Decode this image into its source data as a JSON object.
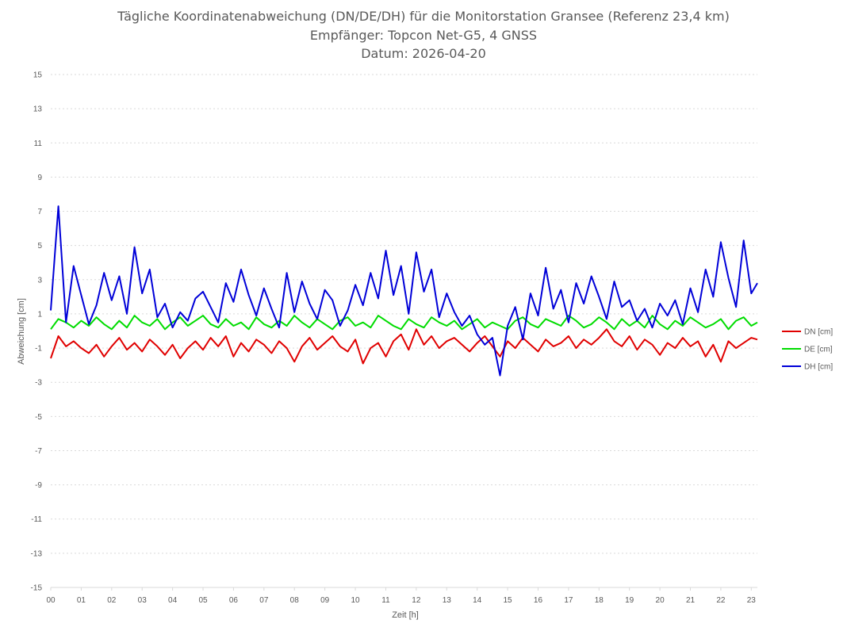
{
  "chart_data": {
    "type": "line",
    "title": "Tägliche Koordinatenabweichung (DN/DE/DH) für die Monitorstation Gransee (Referenz 23,4 km)",
    "subtitle": "Empfänger: Topcon Net-G5, 4 GNSS",
    "date_line": "Datum: 2026-04-20",
    "xlabel": "Zeit [h]",
    "ylabel": "Abweichung [cm]",
    "xlim": [
      0,
      23.2
    ],
    "ylim": [
      -15,
      15
    ],
    "x_ticks": [
      "00",
      "01",
      "02",
      "03",
      "04",
      "05",
      "06",
      "07",
      "08",
      "09",
      "10",
      "11",
      "12",
      "13",
      "14",
      "15",
      "16",
      "17",
      "18",
      "19",
      "20",
      "21",
      "22",
      "23"
    ],
    "y_ticks": [
      15,
      13,
      11,
      9,
      7,
      5,
      3,
      1,
      -1,
      -3,
      -5,
      -7,
      -9,
      -11,
      -13,
      -15
    ],
    "grid": "horizontal-dotted",
    "legend_position": "right",
    "x": [
      0.0,
      0.25,
      0.5,
      0.75,
      1.0,
      1.25,
      1.5,
      1.75,
      2.0,
      2.25,
      2.5,
      2.75,
      3.0,
      3.25,
      3.5,
      3.75,
      4.0,
      4.25,
      4.5,
      4.75,
      5.0,
      5.25,
      5.5,
      5.75,
      6.0,
      6.25,
      6.5,
      6.75,
      7.0,
      7.25,
      7.5,
      7.75,
      8.0,
      8.25,
      8.5,
      8.75,
      9.0,
      9.25,
      9.5,
      9.75,
      10.0,
      10.25,
      10.5,
      10.75,
      11.0,
      11.25,
      11.5,
      11.75,
      12.0,
      12.25,
      12.5,
      12.75,
      13.0,
      13.25,
      13.5,
      13.75,
      14.0,
      14.25,
      14.5,
      14.75,
      15.0,
      15.25,
      15.5,
      15.75,
      16.0,
      16.25,
      16.5,
      16.75,
      17.0,
      17.25,
      17.5,
      17.75,
      18.0,
      18.25,
      18.5,
      18.75,
      19.0,
      19.25,
      19.5,
      19.75,
      20.0,
      20.25,
      20.5,
      20.75,
      21.0,
      21.25,
      21.5,
      21.75,
      22.0,
      22.25,
      22.5,
      22.75,
      23.0,
      23.2
    ],
    "series": [
      {
        "name": "DN [cm]",
        "color": "#e00000",
        "values": [
          -1.6,
          -0.3,
          -0.9,
          -0.6,
          -1.0,
          -1.3,
          -0.8,
          -1.5,
          -0.9,
          -0.4,
          -1.1,
          -0.7,
          -1.2,
          -0.5,
          -0.9,
          -1.4,
          -0.8,
          -1.6,
          -1.0,
          -0.6,
          -1.1,
          -0.4,
          -0.9,
          -0.3,
          -1.5,
          -0.7,
          -1.2,
          -0.5,
          -0.8,
          -1.3,
          -0.6,
          -1.0,
          -1.8,
          -0.9,
          -0.4,
          -1.1,
          -0.7,
          -0.3,
          -0.9,
          -1.2,
          -0.5,
          -1.9,
          -1.0,
          -0.7,
          -1.5,
          -0.6,
          -0.2,
          -1.1,
          0.1,
          -0.8,
          -0.3,
          -1.0,
          -0.6,
          -0.4,
          -0.8,
          -1.2,
          -0.7,
          -0.3,
          -0.9,
          -1.5,
          -0.6,
          -1.0,
          -0.4,
          -0.8,
          -1.2,
          -0.5,
          -0.9,
          -0.7,
          -0.3,
          -1.0,
          -0.5,
          -0.8,
          -0.4,
          0.1,
          -0.6,
          -0.9,
          -0.3,
          -1.1,
          -0.5,
          -0.8,
          -1.4,
          -0.7,
          -1.0,
          -0.4,
          -0.9,
          -0.6,
          -1.5,
          -0.8,
          -1.8,
          -0.6,
          -1.0,
          -0.7,
          -0.4,
          -0.5
        ]
      },
      {
        "name": "DE [cm]",
        "color": "#00dc00",
        "values": [
          0.1,
          0.7,
          0.5,
          0.2,
          0.6,
          0.3,
          0.8,
          0.4,
          0.1,
          0.6,
          0.2,
          0.9,
          0.5,
          0.3,
          0.7,
          0.1,
          0.5,
          0.8,
          0.3,
          0.6,
          0.9,
          0.4,
          0.2,
          0.7,
          0.3,
          0.5,
          0.1,
          0.8,
          0.4,
          0.2,
          0.6,
          0.3,
          0.9,
          0.5,
          0.2,
          0.7,
          0.4,
          0.1,
          0.6,
          0.8,
          0.3,
          0.5,
          0.2,
          0.9,
          0.6,
          0.3,
          0.1,
          0.7,
          0.4,
          0.2,
          0.8,
          0.5,
          0.3,
          0.6,
          0.1,
          0.4,
          0.7,
          0.2,
          0.5,
          0.3,
          0.1,
          0.6,
          0.8,
          0.4,
          0.2,
          0.7,
          0.5,
          0.3,
          0.9,
          0.6,
          0.2,
          0.4,
          0.8,
          0.5,
          0.1,
          0.7,
          0.3,
          0.6,
          0.2,
          0.9,
          0.4,
          0.1,
          0.6,
          0.3,
          0.8,
          0.5,
          0.2,
          0.4,
          0.7,
          0.1,
          0.6,
          0.8,
          0.3,
          0.5
        ]
      },
      {
        "name": "DH [cm]",
        "color": "#0000d8",
        "values": [
          1.2,
          7.3,
          0.5,
          3.8,
          2.1,
          0.4,
          1.5,
          3.4,
          1.8,
          3.2,
          1.0,
          4.9,
          2.2,
          3.6,
          0.8,
          1.6,
          0.2,
          1.1,
          0.6,
          1.9,
          2.3,
          1.4,
          0.5,
          2.8,
          1.7,
          3.6,
          2.1,
          0.9,
          2.5,
          1.3,
          0.2,
          3.4,
          1.1,
          2.9,
          1.6,
          0.7,
          2.4,
          1.8,
          0.3,
          1.2,
          2.7,
          1.5,
          3.4,
          1.9,
          4.7,
          2.1,
          3.8,
          1.0,
          4.6,
          2.3,
          3.6,
          0.8,
          2.2,
          1.1,
          0.3,
          0.9,
          -0.2,
          -0.8,
          -0.4,
          -2.6,
          0.3,
          1.4,
          -0.5,
          2.2,
          0.9,
          3.7,
          1.3,
          2.4,
          0.5,
          2.8,
          1.6,
          3.2,
          2.0,
          0.7,
          2.9,
          1.4,
          1.8,
          0.6,
          1.3,
          0.2,
          1.6,
          0.9,
          1.8,
          0.4,
          2.5,
          1.1,
          3.6,
          2.0,
          5.2,
          3.1,
          1.4,
          5.3,
          2.2,
          2.8
        ]
      }
    ]
  }
}
